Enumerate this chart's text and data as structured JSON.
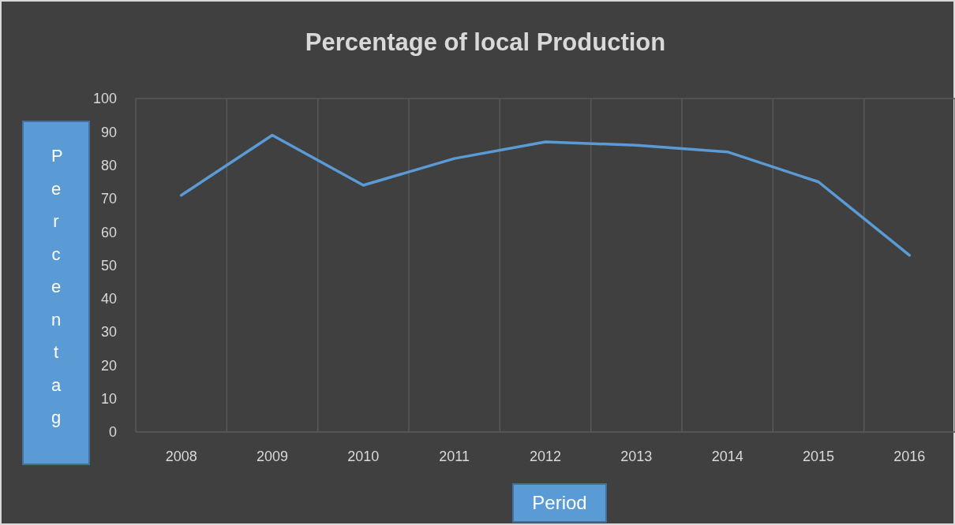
{
  "chart_data": {
    "type": "line",
    "title": "Percentage of local Production",
    "xlabel": "Period",
    "ylabel": "Percentag",
    "categories": [
      "2008",
      "2009",
      "2010",
      "2011",
      "2012",
      "2013",
      "2014",
      "2015",
      "2016"
    ],
    "series": [
      {
        "color": "#5b9bd5",
        "values": [
          71,
          89,
          74,
          82,
          87,
          86,
          84,
          75,
          53
        ]
      }
    ],
    "ylim": [
      0,
      100
    ],
    "yticks": [
      0,
      10,
      20,
      30,
      40,
      50,
      60,
      70,
      80,
      90,
      100
    ],
    "grid": true,
    "legend": false,
    "marker": "none",
    "line_style": "solid"
  }
}
